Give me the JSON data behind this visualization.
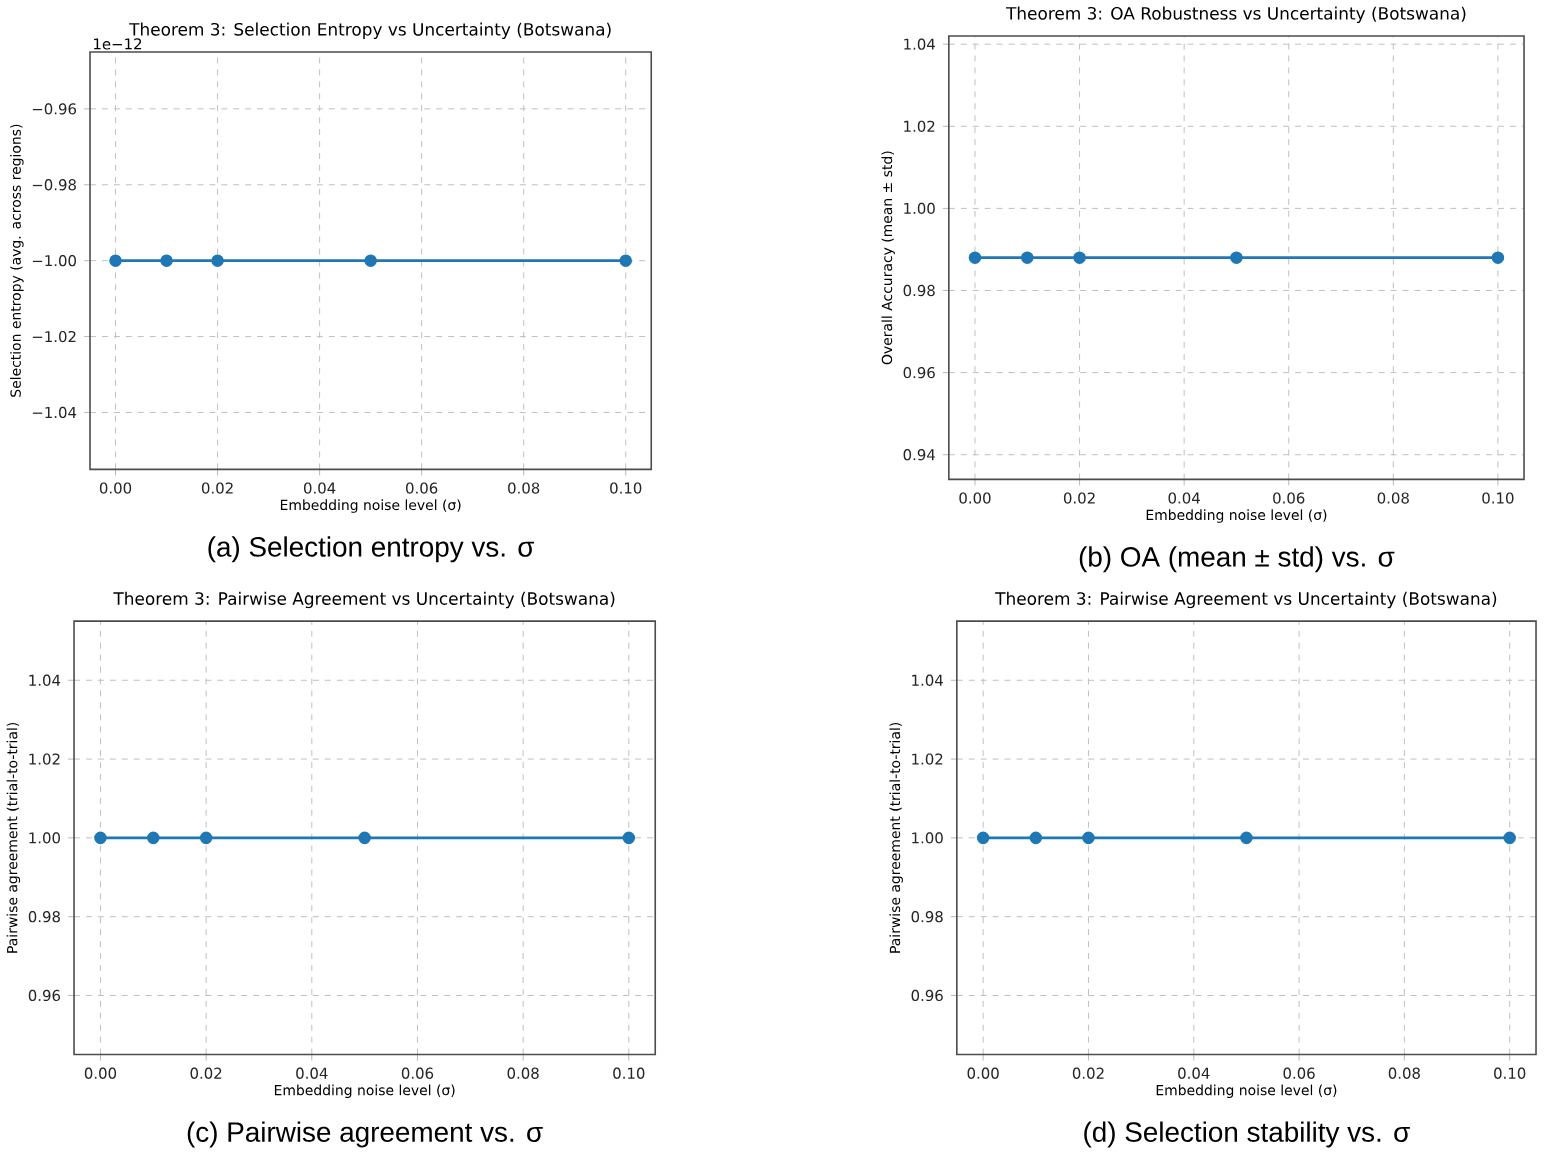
{
  "chart_data": [
    {
      "type": "line",
      "title": "Theorem 3: Selection Entropy vs Uncertainty (Botswana)",
      "xlabel": "Embedding noise level (σ)",
      "ylabel": "Selection entropy (avg. across regions)",
      "x": [
        0,
        0.01,
        0.02,
        0.05,
        0.1
      ],
      "values": [
        -1.0,
        -1.0,
        -1.0,
        -1.0,
        -1.0
      ],
      "color": "#1f77b4",
      "marker": "circle",
      "line_style": "solid",
      "grid": true,
      "xlim": [
        -0.005,
        0.105
      ],
      "ylim": [
        -1.055,
        -0.945
      ],
      "xticks": [
        {
          "value": 0,
          "label": "0.00"
        },
        {
          "value": 0.02,
          "label": "0.02"
        },
        {
          "value": 0.04,
          "label": "0.04"
        },
        {
          "value": 0.06,
          "label": "0.06"
        },
        {
          "value": 0.08,
          "label": "0.08"
        },
        {
          "value": 0.1,
          "label": "0.10"
        }
      ],
      "yticks": [
        {
          "value": -1.04,
          "label": "−1.04"
        },
        {
          "value": -1.02,
          "label": "−1.02"
        },
        {
          "value": -1.0,
          "label": "−1.00"
        },
        {
          "value": -0.98,
          "label": "−0.98"
        },
        {
          "value": -0.96,
          "label": "−0.96"
        }
      ],
      "annotations": [
        "1e−12",
        "(a) Selection entropy vs. σ"
      ]
    },
    {
      "type": "line",
      "title": "Theorem 3: OA Robustness vs Uncertainty (Botswana)",
      "xlabel": "Embedding noise level (σ)",
      "ylabel": "Overall Accuracy (mean ± std)",
      "x": [
        0,
        0.01,
        0.02,
        0.05,
        0.1
      ],
      "values": [
        0.988,
        0.988,
        0.988,
        0.988,
        0.988
      ],
      "color": "#1f77b4",
      "marker": "circle",
      "line_style": "solid",
      "grid": true,
      "xlim": [
        -0.005,
        0.105
      ],
      "ylim": [
        0.934,
        1.042
      ],
      "xticks": [
        {
          "value": 0,
          "label": "0.00"
        },
        {
          "value": 0.02,
          "label": "0.02"
        },
        {
          "value": 0.04,
          "label": "0.04"
        },
        {
          "value": 0.06,
          "label": "0.06"
        },
        {
          "value": 0.08,
          "label": "0.08"
        },
        {
          "value": 0.1,
          "label": "0.10"
        }
      ],
      "yticks": [
        0.94,
        0.96,
        0.98,
        {
          "value": 1.0,
          "label": "1.00"
        },
        1.02,
        1.04
      ],
      "annotations": [
        "(b) OA (mean ± std) vs. σ"
      ]
    },
    {
      "type": "line",
      "title": "Theorem 3: Pairwise Agreement vs Uncertainty (Botswana)",
      "xlabel": "Embedding noise level (σ)",
      "ylabel": "Pairwise agreement (trial-to-trial)",
      "x": [
        0,
        0.01,
        0.02,
        0.05,
        0.1
      ],
      "values": [
        1.0,
        1.0,
        1.0,
        1.0,
        1.0
      ],
      "color": "#1f77b4",
      "marker": "circle",
      "line_style": "solid",
      "grid": true,
      "xlim": [
        -0.005,
        0.105
      ],
      "ylim": [
        0.945,
        1.055
      ],
      "xticks": [
        {
          "value": 0,
          "label": "0.00"
        },
        {
          "value": 0.02,
          "label": "0.02"
        },
        {
          "value": 0.04,
          "label": "0.04"
        },
        {
          "value": 0.06,
          "label": "0.06"
        },
        {
          "value": 0.08,
          "label": "0.08"
        },
        {
          "value": 0.1,
          "label": "0.10"
        }
      ],
      "yticks": [
        0.96,
        0.98,
        {
          "value": 1.0,
          "label": "1.00"
        },
        1.02,
        1.04
      ],
      "annotations": [
        "(c) Pairwise agreement vs. σ"
      ]
    },
    {
      "type": "line",
      "title": "Theorem 3: Pairwise Agreement vs Uncertainty (Botswana)",
      "xlabel": "Embedding noise level (σ)",
      "ylabel": "Pairwise agreement (trial-to-trial)",
      "x": [
        0,
        0.01,
        0.02,
        0.05,
        0.1
      ],
      "values": [
        1.0,
        1.0,
        1.0,
        1.0,
        1.0
      ],
      "color": "#1f77b4",
      "marker": "circle",
      "line_style": "solid",
      "grid": true,
      "xlim": [
        -0.005,
        0.105
      ],
      "ylim": [
        0.945,
        1.055
      ],
      "xticks": [
        {
          "value": 0,
          "label": "0.00"
        },
        {
          "value": 0.02,
          "label": "0.02"
        },
        {
          "value": 0.04,
          "label": "0.04"
        },
        {
          "value": 0.06,
          "label": "0.06"
        },
        {
          "value": 0.08,
          "label": "0.08"
        },
        {
          "value": 0.1,
          "label": "0.10"
        }
      ],
      "yticks": [
        0.96,
        0.98,
        {
          "value": 1.0,
          "label": "1.00"
        },
        1.02,
        1.04
      ],
      "annotations": [
        "(d) Selection stability vs. σ"
      ]
    }
  ]
}
